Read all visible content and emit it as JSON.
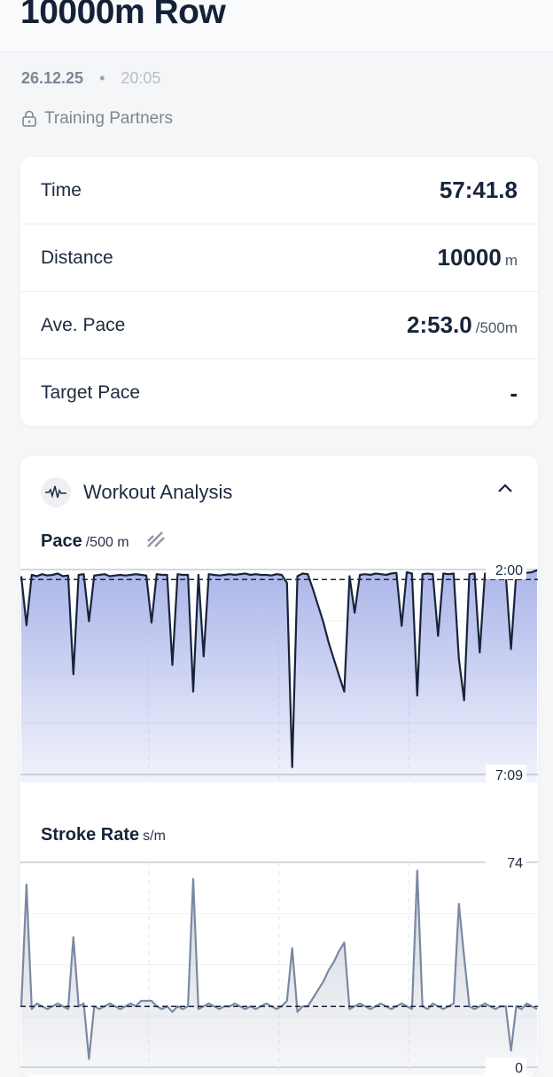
{
  "header": {
    "title": "10000m Row"
  },
  "meta": {
    "date": "26.12.25",
    "separator": "•",
    "time": "20:05",
    "visibility": "Training Partners",
    "visibility_icon": "lock-icon"
  },
  "stats": [
    {
      "label": "Time",
      "value": "57:41.8",
      "unit": ""
    },
    {
      "label": "Distance",
      "value": "10000",
      "unit": "m"
    },
    {
      "label": "Ave. Pace",
      "value": "2:53.0",
      "unit": "/500m"
    },
    {
      "label": "Target Pace",
      "value": "-",
      "unit": ""
    }
  ],
  "analysis": {
    "title": "Workout Analysis",
    "icon": "waveform-icon",
    "collapse_icon": "chevron-up-icon"
  },
  "colors": {
    "pace_line": "#17243a",
    "pace_fill": "#9ea9e6",
    "stroke_line": "#7a89a3",
    "stroke_fill": "#c9ced8"
  },
  "chart_data": [
    {
      "type": "area",
      "title": "Pace",
      "unit": "/500 m",
      "toggle_icon": "split-toggle-icon",
      "y_inverted": true,
      "ylim_labels": [
        "2:00",
        "7:09"
      ],
      "ylim_seconds": [
        120,
        429
      ],
      "reference_line_seconds": 135,
      "values_seconds": [
        130,
        204,
        128,
        130,
        127,
        129,
        128,
        126,
        130,
        129,
        278,
        128,
        127,
        198,
        129,
        128,
        127,
        130,
        129,
        128,
        129,
        128,
        127,
        128,
        129,
        200,
        127,
        128,
        128,
        264,
        127,
        128,
        128,
        304,
        128,
        251,
        127,
        128,
        129,
        128,
        127,
        128,
        127,
        126,
        128,
        127,
        128,
        128,
        129,
        127,
        128,
        140,
        418,
        130,
        126,
        127,
        150,
        175,
        200,
        230,
        255,
        280,
        304,
        130,
        185,
        128,
        127,
        128,
        126,
        127,
        128,
        126,
        125,
        205,
        124,
        126,
        310,
        127,
        126,
        127,
        220,
        126,
        127,
        126,
        255,
        317,
        127,
        126,
        245,
        126,
        127,
        127,
        126,
        127,
        240,
        126,
        126,
        125,
        124,
        121
      ]
    },
    {
      "type": "area",
      "title": "Stroke Rate",
      "unit": "s/m",
      "ylim": [
        0,
        74
      ],
      "ylim_labels": [
        "74",
        "0"
      ],
      "reference_line": 22,
      "values": [
        22,
        66,
        21,
        23,
        22,
        21,
        22,
        23,
        22,
        21,
        47,
        22,
        23,
        3,
        22,
        21,
        22,
        23,
        22,
        21,
        22,
        23,
        22,
        24,
        24,
        24,
        22,
        21,
        22,
        20,
        22,
        21,
        22,
        68,
        21,
        22,
        23,
        22,
        21,
        22,
        22,
        23,
        22,
        21,
        22,
        21,
        22,
        23,
        22,
        21,
        22,
        24,
        43,
        20,
        22,
        22,
        25,
        28,
        31,
        35,
        38,
        42,
        45,
        21,
        22,
        23,
        22,
        21,
        22,
        23,
        22,
        21,
        22,
        23,
        22,
        21,
        71,
        22,
        21,
        23,
        22,
        21,
        22,
        23,
        59,
        40,
        22,
        21,
        22,
        23,
        22,
        21,
        22,
        22,
        6,
        22,
        21,
        23,
        22,
        21
      ]
    }
  ]
}
